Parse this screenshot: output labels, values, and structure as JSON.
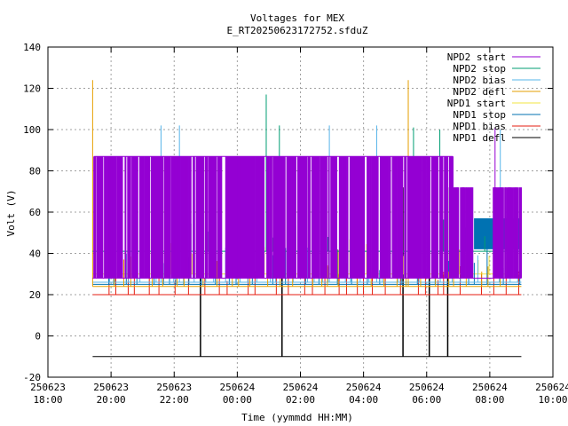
{
  "chart_data": {
    "type": "line",
    "title": "Voltages for MEX",
    "subtitle": "E_RT20250623172752.sfduZ",
    "xlabel": "Time (yymmdd HH:MM)",
    "ylabel": "Volt (V)",
    "xlim": [
      "250623 18:00",
      "250624 10:00"
    ],
    "ylim": [
      -20,
      140
    ],
    "grid": true,
    "legend_position": "top-right",
    "y_ticks": [
      "-20",
      "0",
      "20",
      "40",
      "60",
      "80",
      "100",
      "120",
      "140"
    ],
    "x_ticks": [
      {
        "date": "250623",
        "time": "18:00"
      },
      {
        "date": "250623",
        "time": "20:00"
      },
      {
        "date": "250623",
        "time": "22:00"
      },
      {
        "date": "250624",
        "time": "00:00"
      },
      {
        "date": "250624",
        "time": "02:00"
      },
      {
        "date": "250624",
        "time": "04:00"
      },
      {
        "date": "250624",
        "time": "06:00"
      },
      {
        "date": "250624",
        "time": "08:00"
      },
      {
        "date": "250624",
        "time": "10:00"
      }
    ],
    "series": [
      {
        "name": "NPD2 start",
        "color": "#9400d3",
        "base": 28,
        "high": 87,
        "high2": 72,
        "spikes": [
          {
            "x": "250624 08:10",
            "y": 101
          }
        ]
      },
      {
        "name": "NPD2 stop",
        "color": "#009e73",
        "base": 41,
        "spikes": [
          {
            "x": "250624 00:55",
            "y": 117
          },
          {
            "x": "250624 01:20",
            "y": 102
          },
          {
            "x": "250624 05:35",
            "y": 101
          },
          {
            "x": "250624 06:25",
            "y": 100
          }
        ]
      },
      {
        "name": "NPD2 bias",
        "color": "#56b4e9",
        "base": 26,
        "spikes": [
          {
            "x": "250623 21:35",
            "y": 102
          },
          {
            "x": "250623 22:10",
            "y": 102
          },
          {
            "x": "250624 02:55",
            "y": 102
          },
          {
            "x": "250624 04:25",
            "y": 102
          },
          {
            "x": "250624 08:20",
            "y": 100
          }
        ]
      },
      {
        "name": "NPD2 defl",
        "color": "#e69f00",
        "base": 24,
        "spikes": [
          {
            "x": "250623 19:25",
            "y": 124
          },
          {
            "x": "250624 05:25",
            "y": 124
          }
        ]
      },
      {
        "name": "NPD1 start",
        "color": "#f0e442",
        "base": 30
      },
      {
        "name": "NPD1 stop",
        "color": "#0072b2",
        "base": 25,
        "block": [
          {
            "from": "250624 07:30",
            "to": "250624 09:00",
            "low": 42,
            "high": 57
          }
        ]
      },
      {
        "name": "NPD1 bias",
        "color": "#e51e10",
        "base": 20
      },
      {
        "name": "NPD1 defl",
        "color": "#000000",
        "base": -10,
        "spikes": [
          {
            "x": "250623 22:50",
            "y": 52
          },
          {
            "x": "250624 01:25",
            "y": 87
          },
          {
            "x": "250624 05:15",
            "y": 72
          },
          {
            "x": "250624 06:05",
            "y": 72
          },
          {
            "x": "250624 06:40",
            "y": 72
          }
        ]
      }
    ]
  }
}
